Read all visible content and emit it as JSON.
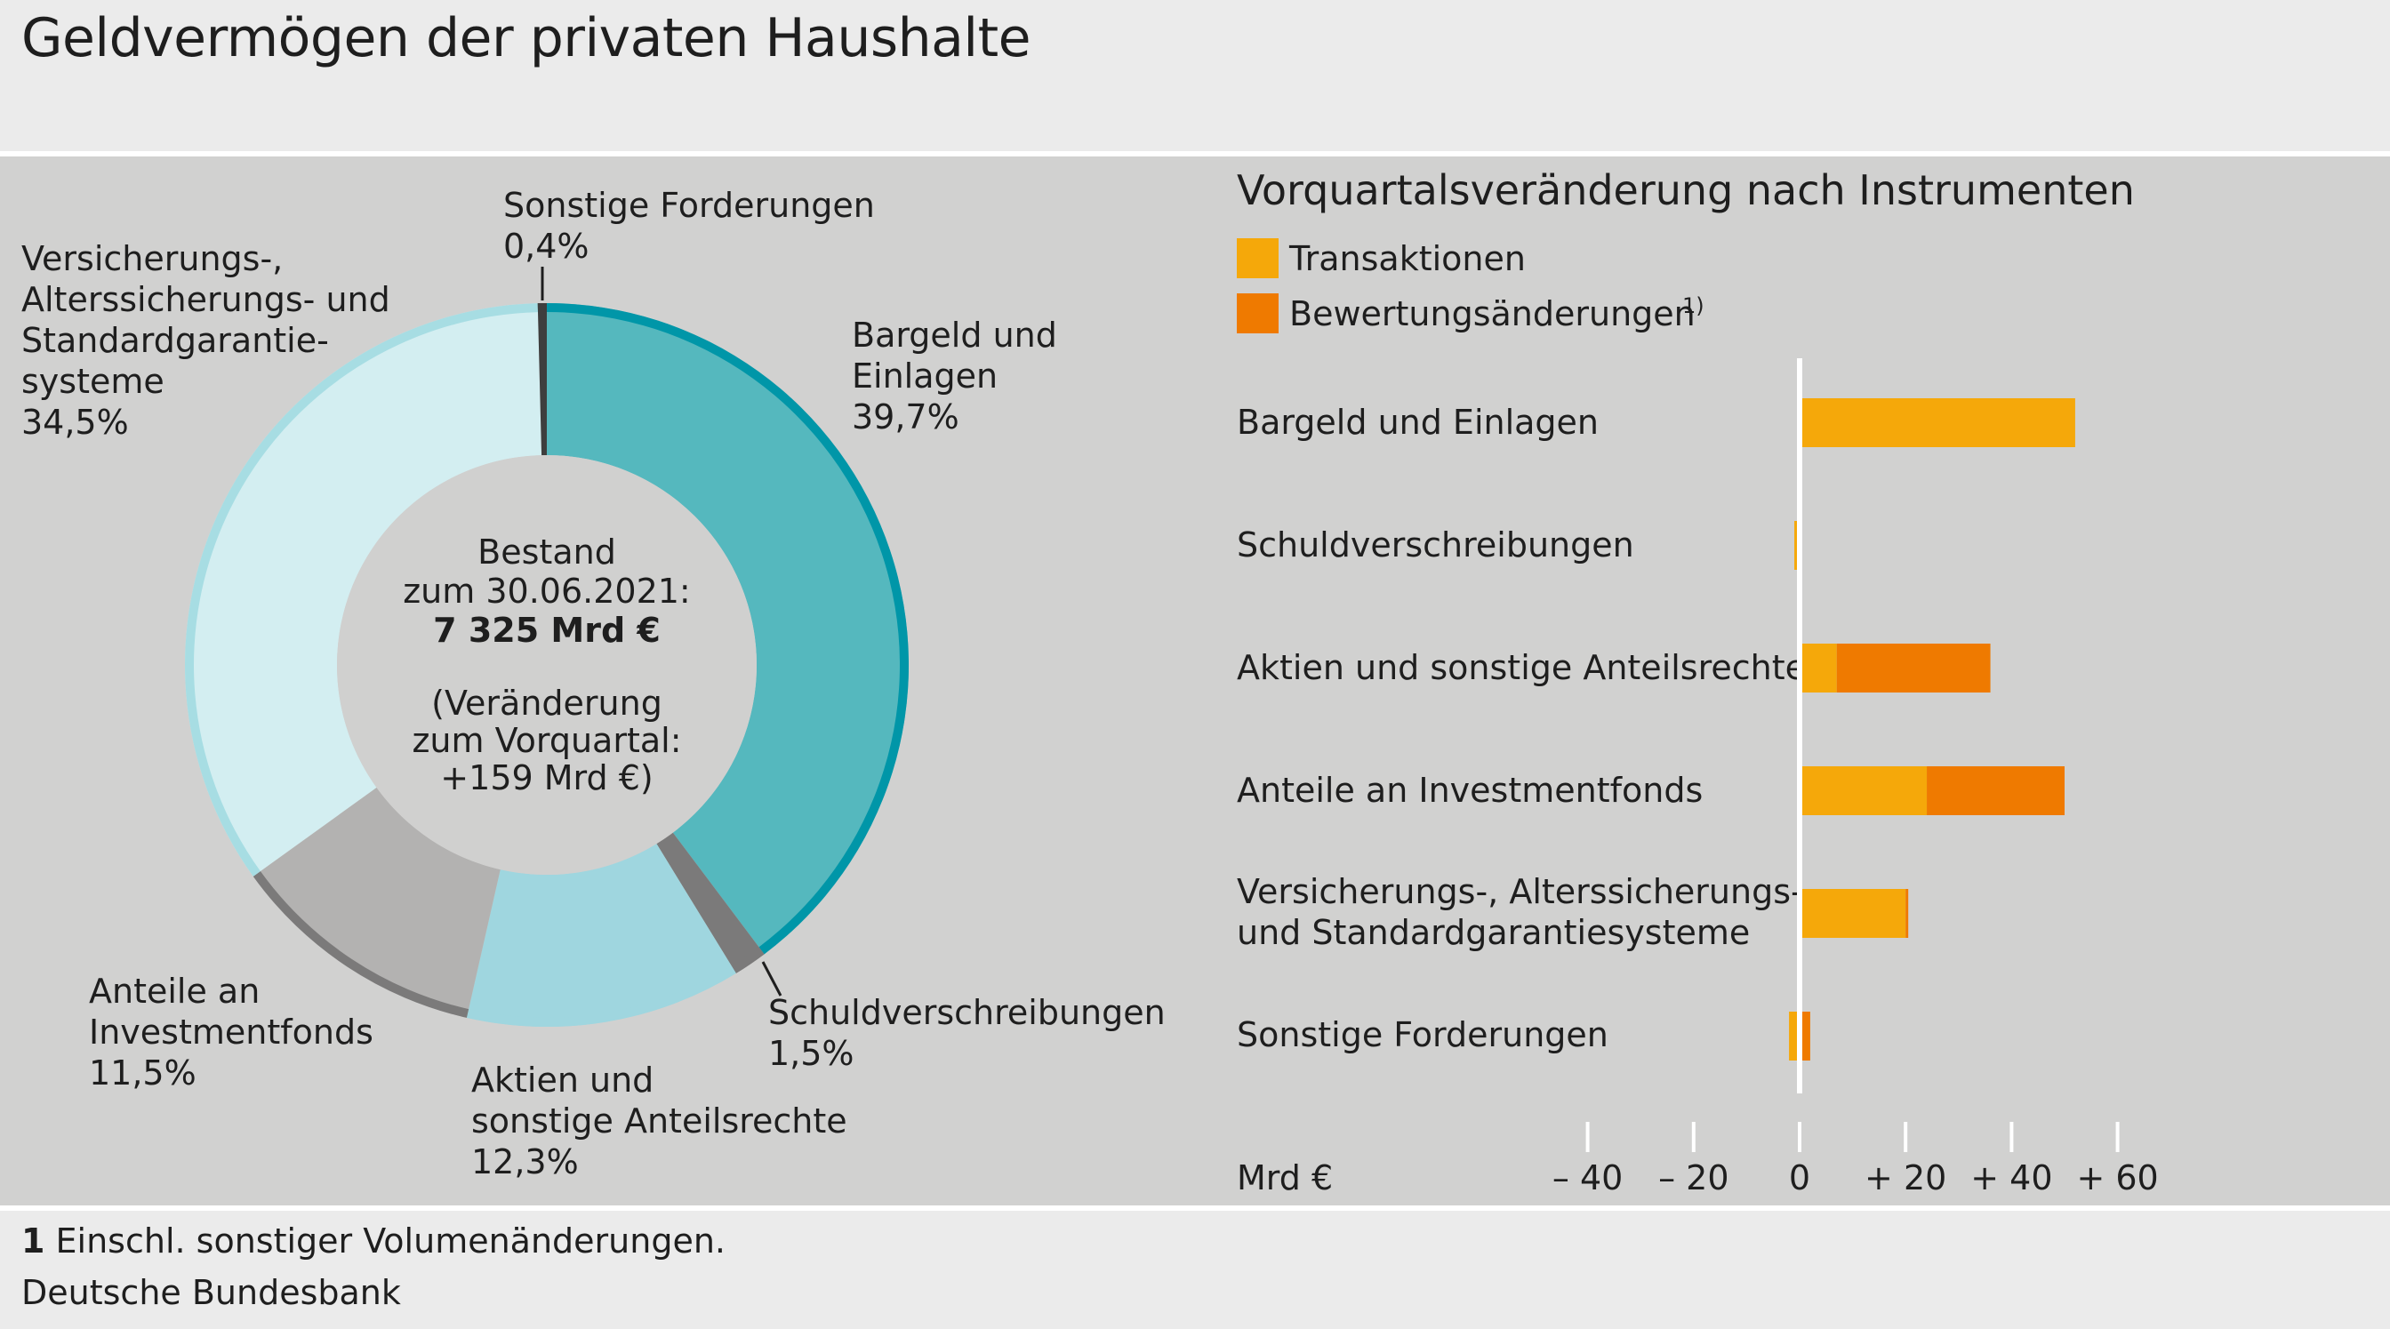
{
  "title": "Geldvermögen der privaten Haushalte",
  "colors": {
    "panel": "#d1d1d0",
    "transaktionen": "#f5a80a",
    "bewertung": "#ef7a00",
    "bargeld": "#55b8be",
    "bargeld_rim": "#0096a8",
    "aktien": "#9fd6df",
    "versicherung": "#d3eef1",
    "versicherung_rim": "#a7dde3",
    "investment": "#b3b2b1",
    "investment_rim": "#7b7a7a",
    "schuld": "#7b7a7a",
    "sonstige": "#3e3e3e",
    "center": "#d0d0cf"
  },
  "donut": {
    "center_label_line1": "Bestand",
    "center_label_line2": "zum 30.06.2021:",
    "center_value": "7 325 Mrd €",
    "change_line1": "(Veränderung",
    "change_line2": "zum Vorquartal:",
    "change_line3": "+159 Mrd €)"
  },
  "donut_labels": {
    "sonstige": {
      "line1": "Sonstige Forderungen",
      "pct": "0,4%"
    },
    "versicherung": {
      "line1": "Versicherungs-,",
      "line2": "Alterssicherungs- und",
      "line3": "Standardgarantie-",
      "line4": "systeme",
      "pct": "34,5%"
    },
    "bargeld": {
      "line1": "Bargeld und",
      "line2": "Einlagen",
      "pct": "39,7%"
    },
    "schuld": {
      "line1": "Schuldverschreibungen",
      "pct": "1,5%"
    },
    "investment": {
      "line1": "Anteile an",
      "line2": "Investmentfonds",
      "pct": "11,5%"
    },
    "aktien": {
      "line1": "Aktien und",
      "line2": "sonstige Anteilsrechte",
      "pct": "12,3%"
    }
  },
  "bar_panel": {
    "title": "Vorquartalsveränderung nach Instrumenten",
    "legend_transaktionen": "Transaktionen",
    "legend_bewertung": "Bewertungsänderungen",
    "legend_bewertung_sup": "1)",
    "unit_label": "Mrd €",
    "row_labels": {
      "bargeld": "Bargeld und Einlagen",
      "schuld": "Schuldverschreibungen",
      "aktien": "Aktien und sonstige Anteilsrechte",
      "investment": "Anteile an Investmentfonds",
      "versicherung_1": "Versicherungs-, Alterssicherungs-",
      "versicherung_2": "und Standardgarantiesysteme",
      "sonstige": "Sonstige Forderungen"
    },
    "ticks": [
      "– 40",
      "– 20",
      "0",
      "+ 20",
      "+ 40",
      "+ 60"
    ]
  },
  "chart_data": [
    {
      "type": "pie",
      "variant": "donut",
      "title": "Geldvermögen der privaten Haushalte",
      "categories": [
        "Bargeld und Einlagen",
        "Schuldverschreibungen",
        "Aktien und sonstige Anteilsrechte",
        "Anteile an Investmentfonds",
        "Versicherungs-, Alterssicherungs- und Standardgarantiesysteme",
        "Sonstige Forderungen"
      ],
      "values": [
        39.7,
        1.5,
        12.3,
        11.5,
        34.5,
        0.4
      ],
      "unit": "%",
      "total": "7 325 Mrd €",
      "change": "+159 Mrd €"
    },
    {
      "type": "bar",
      "orientation": "horizontal",
      "stacked": true,
      "title": "Vorquartalsveränderung nach Instrumenten",
      "xlabel": "Mrd €",
      "xlim": [
        -40,
        60
      ],
      "xticks": [
        -40,
        -20,
        0,
        20,
        40,
        60
      ],
      "categories": [
        "Bargeld und Einlagen",
        "Schuldverschreibungen",
        "Aktien und sonstige Anteilsrechte",
        "Anteile an Investmentfonds",
        "Versicherungs-, Alterssicherungs- und Standardgarantiesysteme",
        "Sonstige Forderungen"
      ],
      "series": [
        {
          "name": "Transaktionen",
          "values": [
            52,
            -1,
            7,
            24,
            20,
            -2
          ]
        },
        {
          "name": "Bewertungsänderungen",
          "values": [
            0,
            0,
            29,
            26,
            0.5,
            2
          ]
        }
      ],
      "legend": "top-left"
    }
  ],
  "footnote_num": "1",
  "footnote_text": " Einschl. sonstiger Volumenänderungen.",
  "source": "Deutsche Bundesbank"
}
